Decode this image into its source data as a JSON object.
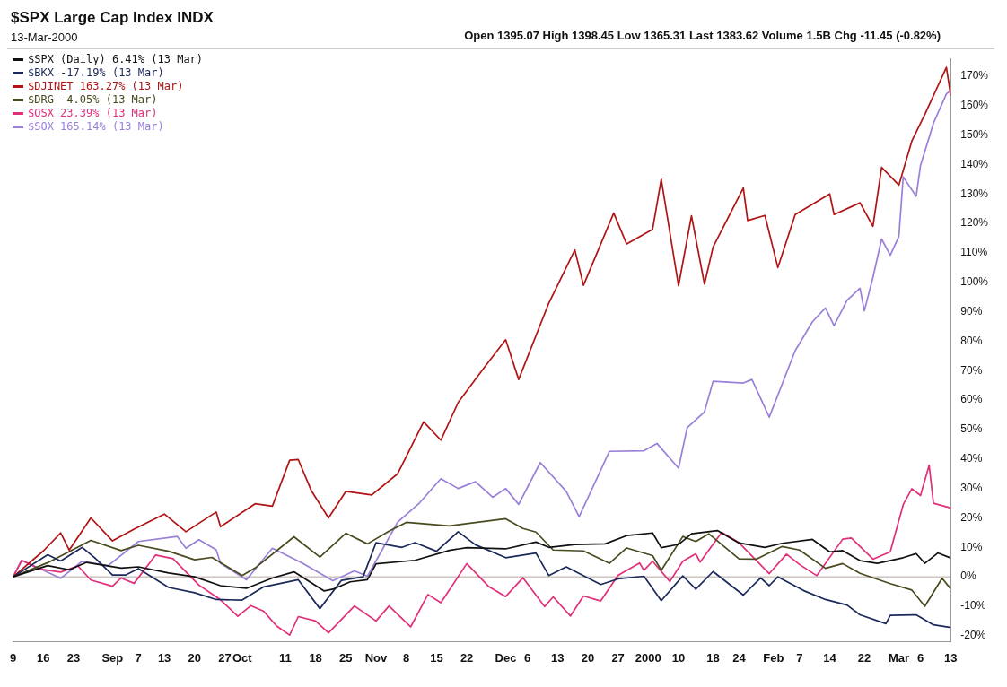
{
  "chart_data": {
    "type": "line",
    "title": "$SPX Large Cap Index INDX",
    "subtitle": "13-Mar-2000",
    "annotations": [
      "Open 1395.07 High 1398.45 Low 1365.31 Last 1383.62 Volume 1.5B Chg -11.45 (-0.82%)"
    ],
    "legend": "top left",
    "line_style": "solid",
    "xlim": [
      "1999-08-09",
      "2000-03-13"
    ],
    "xticks": [
      {
        "value": "1999-08-09",
        "label": "9"
      },
      {
        "value": "1999-08-16",
        "label": "16"
      },
      {
        "value": "1999-08-23",
        "label": "23"
      },
      {
        "value": "1999-09-01",
        "label": "Sep"
      },
      {
        "value": "1999-09-07",
        "label": "7"
      },
      {
        "value": "1999-09-13",
        "label": "13"
      },
      {
        "value": "1999-09-20",
        "label": "20"
      },
      {
        "value": "1999-09-27",
        "label": "27"
      },
      {
        "value": "1999-10-01",
        "label": "Oct"
      },
      {
        "value": "1999-10-11",
        "label": "11"
      },
      {
        "value": "1999-10-18",
        "label": "18"
      },
      {
        "value": "1999-10-25",
        "label": "25"
      },
      {
        "value": "1999-11-01",
        "label": "Nov"
      },
      {
        "value": "1999-11-08",
        "label": "8"
      },
      {
        "value": "1999-11-15",
        "label": "15"
      },
      {
        "value": "1999-11-22",
        "label": "22"
      },
      {
        "value": "1999-12-01",
        "label": "Dec"
      },
      {
        "value": "1999-12-06",
        "label": "6"
      },
      {
        "value": "1999-12-13",
        "label": "13"
      },
      {
        "value": "1999-12-20",
        "label": "20"
      },
      {
        "value": "1999-12-27",
        "label": "27"
      },
      {
        "value": "2000-01-03",
        "label": "2000"
      },
      {
        "value": "2000-01-10",
        "label": "10"
      },
      {
        "value": "2000-01-18",
        "label": "18"
      },
      {
        "value": "2000-01-24",
        "label": "24"
      },
      {
        "value": "2000-02-01",
        "label": "Feb"
      },
      {
        "value": "2000-02-07",
        "label": "7"
      },
      {
        "value": "2000-02-14",
        "label": "14"
      },
      {
        "value": "2000-02-22",
        "label": "22"
      },
      {
        "value": "2000-03-01",
        "label": "Mar"
      },
      {
        "value": "2000-03-06",
        "label": "6"
      },
      {
        "value": "2000-03-13",
        "label": "13"
      }
    ],
    "ylim": [
      -22,
      176
    ],
    "yticks": [
      {
        "value": -20,
        "label": "-20%"
      },
      {
        "value": -10,
        "label": "-10%"
      },
      {
        "value": 0,
        "label": "0%"
      },
      {
        "value": 10,
        "label": "10%"
      },
      {
        "value": 20,
        "label": "20%"
      },
      {
        "value": 30,
        "label": "30%"
      },
      {
        "value": 40,
        "label": "40%"
      },
      {
        "value": 50,
        "label": "50%"
      },
      {
        "value": 60,
        "label": "60%"
      },
      {
        "value": 70,
        "label": "70%"
      },
      {
        "value": 80,
        "label": "80%"
      },
      {
        "value": 90,
        "label": "90%"
      },
      {
        "value": 100,
        "label": "100%"
      },
      {
        "value": 110,
        "label": "110%"
      },
      {
        "value": 120,
        "label": "120%"
      },
      {
        "value": 130,
        "label": "130%"
      },
      {
        "value": 140,
        "label": "140%"
      },
      {
        "value": 150,
        "label": "150%"
      },
      {
        "value": 160,
        "label": "160%"
      },
      {
        "value": 170,
        "label": "170%"
      }
    ],
    "ref_lines": [
      {
        "axis": "y",
        "value": 0,
        "color": "#b8a8a0"
      }
    ],
    "series": [
      {
        "name": "$SPX (Daily) 6.41% (13 Mar)",
        "color": "#111111",
        "x": [
          "1999-08-09",
          "1999-08-17",
          "1999-08-22",
          "1999-08-26",
          "1999-09-03",
          "1999-09-07",
          "1999-09-14",
          "1999-09-20",
          "1999-09-26",
          "1999-10-02",
          "1999-10-08",
          "1999-10-13",
          "1999-10-20",
          "1999-10-22",
          "1999-10-26",
          "1999-10-30",
          "1999-11-01",
          "1999-11-10",
          "1999-11-18",
          "1999-11-22",
          "1999-12-01",
          "1999-12-08",
          "1999-12-11",
          "1999-12-17",
          "1999-12-24",
          "1999-12-29",
          "2000-01-04",
          "2000-01-06",
          "2000-01-10",
          "2000-01-13",
          "2000-01-19",
          "2000-01-24",
          "2000-01-30",
          "2000-02-03",
          "2000-02-10",
          "2000-02-14",
          "2000-02-17",
          "2000-02-21",
          "2000-02-25",
          "2000-03-02",
          "2000-03-05",
          "2000-03-07",
          "2000-03-10",
          "2000-03-13"
        ],
        "values": [
          0,
          3.8,
          2.4,
          4.9,
          3,
          3.4,
          1.3,
          0,
          -3,
          -3.9,
          -0.4,
          1.7,
          -4.8,
          -4.2,
          -1.7,
          -1,
          4.4,
          5.6,
          9,
          9.9,
          9.5,
          11.8,
          10,
          11,
          11.2,
          14,
          14.9,
          9.9,
          11,
          14.6,
          15.7,
          11.5,
          10,
          11.4,
          12.7,
          8.5,
          8.9,
          5.5,
          4.6,
          6.5,
          7.9,
          4.6,
          8.1,
          6.4
        ]
      },
      {
        "name": "$BKX -17.19% (13 Mar)",
        "color": "#1c2a5a",
        "x": [
          "1999-08-09",
          "1999-08-17",
          "1999-08-20",
          "1999-08-25",
          "1999-08-28",
          "1999-09-01",
          "1999-09-04",
          "1999-09-07",
          "1999-09-14",
          "1999-09-20",
          "1999-09-25",
          "1999-10-01",
          "1999-10-06",
          "1999-10-14",
          "1999-10-19",
          "1999-10-24",
          "1999-10-29",
          "1999-11-01",
          "1999-11-07",
          "1999-11-10",
          "1999-11-15",
          "1999-11-20",
          "1999-11-24",
          "1999-12-01",
          "1999-12-08",
          "1999-12-11",
          "1999-12-15",
          "1999-12-23",
          "1999-12-27",
          "2000-01-02",
          "2000-01-06",
          "2000-01-11",
          "2000-01-14",
          "2000-01-18",
          "2000-01-25",
          "2000-01-29",
          "2000-01-31",
          "2000-02-02",
          "2000-02-08",
          "2000-02-13",
          "2000-02-18",
          "2000-02-21",
          "2000-02-27",
          "2000-02-28",
          "2000-03-05",
          "2000-03-09",
          "2000-03-13"
        ],
        "values": [
          0,
          7.5,
          5.4,
          10,
          6.3,
          0.6,
          0.6,
          2.8,
          -3.6,
          -5.4,
          -7.7,
          -7.9,
          -3.4,
          -1,
          -10.8,
          -1.2,
          0,
          11.6,
          10,
          11.6,
          8.7,
          15.3,
          10.9,
          6.5,
          8.1,
          0.4,
          3.4,
          -2.6,
          -0.7,
          0.2,
          -8.1,
          0.3,
          -4.2,
          1.8,
          -6.2,
          -0.4,
          -3,
          0,
          -4.7,
          -7.7,
          -9.6,
          -12.9,
          -15.9,
          -13.1,
          -12.9,
          -16.3,
          -17.2
        ]
      },
      {
        "name": "$DJINET 163.27% (13 Mar)",
        "color": "#b01414",
        "x": [
          "1999-08-09",
          "1999-08-16",
          "1999-08-20",
          "1999-08-22",
          "1999-08-27",
          "1999-09-01",
          "1999-09-06",
          "1999-09-13",
          "1999-09-18",
          "1999-09-25",
          "1999-09-26",
          "1999-10-04",
          "1999-10-08",
          "1999-10-12",
          "1999-10-14",
          "1999-10-17",
          "1999-10-21",
          "1999-10-25",
          "1999-10-31",
          "1999-11-06",
          "1999-11-12",
          "1999-11-16",
          "1999-11-20",
          "1999-11-26",
          "1999-12-01",
          "1999-12-04",
          "1999-12-11",
          "1999-12-17",
          "1999-12-19",
          "1999-12-26",
          "1999-12-29",
          "2000-01-04",
          "2000-01-06",
          "2000-01-10",
          "2000-01-13",
          "2000-01-16",
          "2000-01-18",
          "2000-01-25",
          "2000-01-26",
          "2000-01-30",
          "2000-02-02",
          "2000-02-06",
          "2000-02-14",
          "2000-02-15",
          "2000-02-21",
          "2000-02-24",
          "2000-02-26",
          "2000-03-01",
          "2000-03-04",
          "2000-03-07",
          "2000-03-12",
          "2000-03-13"
        ],
        "values": [
          0,
          8.8,
          14.9,
          9.1,
          20,
          12.2,
          16.2,
          21.3,
          15.3,
          22,
          17,
          24.8,
          24,
          39.6,
          39.8,
          29.3,
          20,
          29,
          27.8,
          35,
          52.6,
          46.4,
          59.2,
          71,
          80.5,
          67,
          93,
          111,
          99,
          123.5,
          113,
          118,
          135,
          98.8,
          122.6,
          99.4,
          112,
          132,
          121,
          122.7,
          105,
          123,
          130,
          123,
          127,
          119,
          139,
          133,
          148,
          157,
          173,
          163.3
        ]
      },
      {
        "name": "$DRG -4.05% (13 Mar)",
        "color": "#4a4a20",
        "x": [
          "1999-08-09",
          "1999-08-17",
          "1999-08-27",
          "1999-09-03",
          "1999-09-07",
          "1999-09-14",
          "1999-09-20",
          "1999-09-24",
          "1999-10-01",
          "1999-10-04",
          "1999-10-13",
          "1999-10-19",
          "1999-10-25",
          "1999-10-30",
          "1999-11-04",
          "1999-11-08",
          "1999-11-18",
          "1999-12-01",
          "1999-12-05",
          "1999-12-08",
          "1999-12-12",
          "1999-12-19",
          "1999-12-25",
          "1999-12-29",
          "2000-01-04",
          "2000-01-06",
          "2000-01-11",
          "2000-01-14",
          "2000-01-17",
          "2000-01-24",
          "2000-01-28",
          "2000-02-03",
          "2000-02-07",
          "2000-02-13",
          "2000-02-17",
          "2000-02-21",
          "2000-02-28",
          "2000-03-04",
          "2000-03-07",
          "2000-03-11",
          "2000-03-13"
        ],
        "values": [
          0,
          4.8,
          12.4,
          8.9,
          10.7,
          8.7,
          5.8,
          6.6,
          0.4,
          3,
          13.6,
          6.7,
          14.8,
          11.2,
          15.5,
          18.5,
          17.3,
          19.7,
          16.4,
          15.2,
          9.1,
          8.8,
          4.6,
          9.8,
          7.2,
          2.2,
          13.7,
          12,
          14.6,
          6.1,
          6,
          10.3,
          9.1,
          2.9,
          4.5,
          1.2,
          -2.3,
          -4.5,
          -10,
          -0.5,
          -4.1
        ]
      },
      {
        "name": "$OSX 23.39% (13 Mar)",
        "color": "#e0307a",
        "x": [
          "1999-08-09",
          "1999-08-11",
          "1999-08-15",
          "1999-08-20",
          "1999-08-24",
          "1999-08-27",
          "1999-09-01",
          "1999-09-03",
          "1999-09-06",
          "1999-09-11",
          "1999-09-15",
          "1999-09-21",
          "1999-09-26",
          "1999-09-30",
          "1999-10-03",
          "1999-10-06",
          "1999-10-09",
          "1999-10-12",
          "1999-10-14",
          "1999-10-18",
          "1999-10-21",
          "1999-10-27",
          "1999-11-01",
          "1999-11-04",
          "1999-11-09",
          "1999-11-13",
          "1999-11-16",
          "1999-11-22",
          "1999-11-27",
          "1999-12-01",
          "1999-12-05",
          "1999-12-10",
          "1999-12-12",
          "1999-12-16",
          "1999-12-19",
          "1999-12-23",
          "1999-12-27",
          "2000-01-01",
          "2000-01-02",
          "2000-01-04",
          "2000-01-08",
          "2000-01-11",
          "2000-01-14",
          "2000-01-15",
          "2000-01-20",
          "2000-01-24",
          "2000-01-31",
          "2000-02-04",
          "2000-02-07",
          "2000-02-11",
          "2000-02-17",
          "2000-02-19",
          "2000-02-24",
          "2000-02-28",
          "2000-03-02",
          "2000-03-04",
          "2000-03-06",
          "2000-03-08",
          "2000-03-09",
          "2000-03-13"
        ],
        "values": [
          0,
          5.6,
          2.7,
          1.6,
          3.7,
          -1.1,
          -3.2,
          -0.4,
          -2.2,
          7.4,
          6.2,
          -2.8,
          -7.8,
          -13.4,
          -9.8,
          -11.7,
          -16.7,
          -19.8,
          -13.5,
          -15,
          -19,
          -9.9,
          -15,
          -9.9,
          -17,
          -6,
          -8.8,
          4.5,
          -3.2,
          -6.7,
          -0.3,
          -10.1,
          -6.8,
          -13.3,
          -6.5,
          -8.2,
          0.5,
          4.7,
          2.2,
          5.3,
          -1.6,
          5.3,
          7.8,
          5,
          15.1,
          11.6,
          1.1,
          7.7,
          4.2,
          0.4,
          12.8,
          13.2,
          6,
          8.5,
          24.5,
          29.9,
          27.6,
          37.9,
          25,
          23.4
        ]
      },
      {
        "name": "$SOX 165.14% (13 Mar)",
        "color": "#9a80d8",
        "x": [
          "1999-08-09",
          "1999-08-11",
          "1999-08-20",
          "1999-08-25",
          "1999-08-31",
          "1999-09-07",
          "1999-09-16",
          "1999-09-18",
          "1999-09-21",
          "1999-09-25",
          "1999-09-26",
          "1999-10-02",
          "1999-10-08",
          "1999-10-15",
          "1999-10-22",
          "1999-10-27",
          "1999-10-30",
          "1999-11-06",
          "1999-11-11",
          "1999-11-16",
          "1999-11-20",
          "1999-11-24",
          "1999-11-28",
          "1999-12-01",
          "1999-12-04",
          "1999-12-09",
          "1999-12-15",
          "1999-12-18",
          "1999-12-25",
          "2000-01-02",
          "2000-01-05",
          "2000-01-10",
          "2000-01-12",
          "2000-01-16",
          "2000-01-18",
          "2000-01-25",
          "2000-01-27",
          "2000-01-31",
          "2000-02-06",
          "2000-02-10",
          "2000-02-13",
          "2000-02-15",
          "2000-02-18",
          "2000-02-21",
          "2000-02-22",
          "2000-02-24",
          "2000-02-26",
          "2000-02-28",
          "2000-03-01",
          "2000-03-02",
          "2000-03-05",
          "2000-03-06",
          "2000-03-09",
          "2000-03-12",
          "2000-03-13"
        ],
        "values": [
          0,
          5.6,
          -0.5,
          5.3,
          3.8,
          12,
          13.7,
          9.7,
          12.6,
          9.2,
          4.6,
          -1,
          9.7,
          4.6,
          -1.3,
          2,
          0.2,
          18.6,
          25,
          33.3,
          30,
          32.3,
          27,
          30,
          24.6,
          38.8,
          29,
          20.4,
          42.6,
          42.8,
          45.3,
          36.9,
          50.6,
          56,
          66.4,
          65.8,
          67,
          54.2,
          76.8,
          86.6,
          91.3,
          85.3,
          93.9,
          98,
          90.3,
          101.7,
          114.7,
          109.2,
          115.6,
          135.8,
          129.2,
          139.7,
          154,
          164,
          165.1
        ]
      }
    ]
  }
}
